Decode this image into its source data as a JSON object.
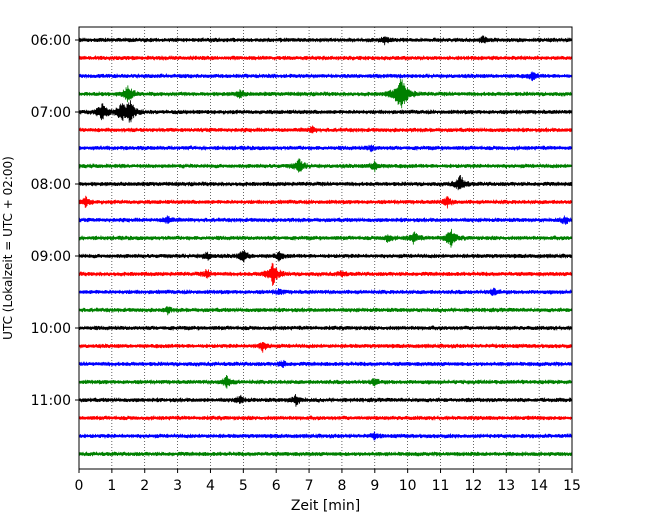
{
  "chart_data": {
    "type": "line",
    "title": "",
    "xlabel": "Zeit  [min]",
    "ylabel": "UTC (Lokalzeit = UTC + 02:00)",
    "xlim": [
      0,
      15
    ],
    "x_ticks": [
      "0",
      "1",
      "2",
      "3",
      "4",
      "5",
      "6",
      "7",
      "8",
      "9",
      "10",
      "11",
      "12",
      "13",
      "14",
      "15"
    ],
    "y_ticks": [
      "06:00",
      "07:00",
      "08:00",
      "09:00",
      "10:00",
      "11:00"
    ],
    "x_grid": "dotted",
    "trace_interval_minutes": 15,
    "trace_colors": [
      "#000000",
      "#ff0000",
      "#0000ff",
      "#008000"
    ],
    "traces": [
      {
        "start": "06:00",
        "color": "#000000",
        "events": [
          {
            "t": 9.3,
            "amp": 4
          },
          {
            "t": 12.3,
            "amp": 3
          }
        ]
      },
      {
        "start": "06:15",
        "color": "#ff0000",
        "events": []
      },
      {
        "start": "06:30",
        "color": "#0000ff",
        "events": [
          {
            "t": 13.8,
            "amp": 4
          }
        ]
      },
      {
        "start": "06:45",
        "color": "#008000",
        "events": [
          {
            "t": 1.5,
            "amp": 9
          },
          {
            "t": 4.9,
            "amp": 4
          },
          {
            "t": 9.8,
            "amp": 16
          }
        ]
      },
      {
        "start": "07:00",
        "color": "#000000",
        "events": [
          {
            "t": 0.7,
            "amp": 9
          },
          {
            "t": 1.3,
            "amp": 8
          },
          {
            "t": 1.55,
            "amp": 11
          }
        ]
      },
      {
        "start": "07:15",
        "color": "#ff0000",
        "events": [
          {
            "t": 7.1,
            "amp": 3
          }
        ]
      },
      {
        "start": "07:30",
        "color": "#0000ff",
        "events": [
          {
            "t": 8.9,
            "amp": 3
          }
        ]
      },
      {
        "start": "07:45",
        "color": "#008000",
        "events": [
          {
            "t": 6.7,
            "amp": 7
          },
          {
            "t": 9.0,
            "amp": 5
          }
        ]
      },
      {
        "start": "08:00",
        "color": "#000000",
        "events": [
          {
            "t": 11.6,
            "amp": 8
          }
        ]
      },
      {
        "start": "08:15",
        "color": "#ff0000",
        "events": [
          {
            "t": 0.2,
            "amp": 5
          },
          {
            "t": 11.2,
            "amp": 5
          }
        ]
      },
      {
        "start": "08:30",
        "color": "#0000ff",
        "events": [
          {
            "t": 2.7,
            "amp": 4
          },
          {
            "t": 14.8,
            "amp": 4
          }
        ]
      },
      {
        "start": "08:45",
        "color": "#008000",
        "events": [
          {
            "t": 9.4,
            "amp": 4
          },
          {
            "t": 10.2,
            "amp": 6
          },
          {
            "t": 11.3,
            "amp": 9
          }
        ]
      },
      {
        "start": "09:00",
        "color": "#000000",
        "events": [
          {
            "t": 3.9,
            "amp": 4
          },
          {
            "t": 5.0,
            "amp": 6
          },
          {
            "t": 6.1,
            "amp": 4
          }
        ]
      },
      {
        "start": "09:15",
        "color": "#ff0000",
        "events": [
          {
            "t": 3.9,
            "amp": 4
          },
          {
            "t": 5.9,
            "amp": 11
          },
          {
            "t": 8.0,
            "amp": 3
          }
        ]
      },
      {
        "start": "09:30",
        "color": "#0000ff",
        "events": [
          {
            "t": 6.1,
            "amp": 3
          },
          {
            "t": 12.6,
            "amp": 3
          }
        ]
      },
      {
        "start": "09:45",
        "color": "#008000",
        "events": [
          {
            "t": 2.7,
            "amp": 3
          }
        ]
      },
      {
        "start": "10:00",
        "color": "#000000",
        "events": []
      },
      {
        "start": "10:15",
        "color": "#ff0000",
        "events": [
          {
            "t": 5.6,
            "amp": 5
          }
        ]
      },
      {
        "start": "10:30",
        "color": "#0000ff",
        "events": [
          {
            "t": 6.2,
            "amp": 3
          }
        ]
      },
      {
        "start": "10:45",
        "color": "#008000",
        "events": [
          {
            "t": 4.5,
            "amp": 6
          },
          {
            "t": 9.0,
            "amp": 3
          }
        ]
      },
      {
        "start": "11:00",
        "color": "#000000",
        "events": [
          {
            "t": 4.9,
            "amp": 4
          },
          {
            "t": 6.6,
            "amp": 5
          }
        ]
      },
      {
        "start": "11:15",
        "color": "#ff0000",
        "events": []
      },
      {
        "start": "11:30",
        "color": "#0000ff",
        "events": [
          {
            "t": 9.0,
            "amp": 3
          }
        ]
      },
      {
        "start": "11:45",
        "color": "#008000",
        "events": []
      }
    ]
  }
}
